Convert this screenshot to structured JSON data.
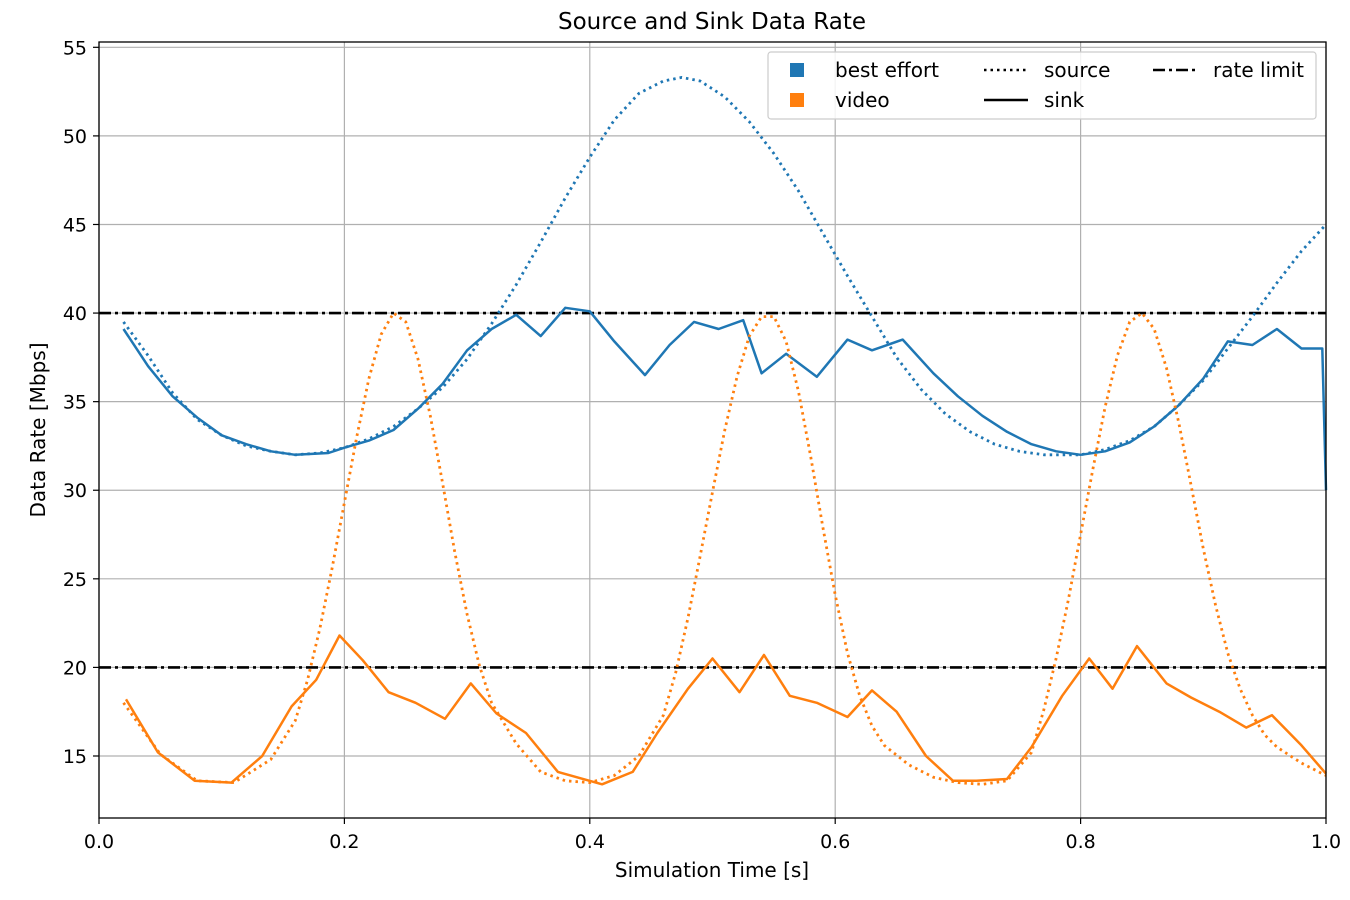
{
  "chart_data": {
    "type": "line",
    "title": "Source and Sink Data Rate",
    "xlabel": "Simulation Time [s]",
    "ylabel": "Data Rate [Mbps]",
    "xlim": [
      0.0,
      1.0
    ],
    "ylim": [
      11.5,
      55.3
    ],
    "xticks": [
      0.0,
      0.2,
      0.4,
      0.6,
      0.8,
      1.0
    ],
    "xtick_labels": [
      "0.0",
      "0.2",
      "0.4",
      "0.6",
      "0.8",
      "1.0"
    ],
    "yticks": [
      15,
      20,
      25,
      30,
      35,
      40,
      45,
      50,
      55
    ],
    "ytick_labels": [
      "15",
      "20",
      "25",
      "30",
      "35",
      "40",
      "45",
      "50",
      "55"
    ],
    "grid": true,
    "legend": {
      "placement": "top-right",
      "entries": [
        {
          "label": "best effort",
          "kind": "color",
          "color": "#1f77b4"
        },
        {
          "label": "video",
          "kind": "color",
          "color": "#ff7f0e"
        },
        {
          "label": "source",
          "kind": "line",
          "style": "dotted",
          "color": "#000000"
        },
        {
          "label": "sink",
          "kind": "line",
          "style": "solid",
          "color": "#000000"
        },
        {
          "label": "rate limit",
          "kind": "line",
          "style": "dashdot",
          "color": "#000000"
        }
      ]
    },
    "rate_limits": [
      40,
      20
    ],
    "series": [
      {
        "group": "best effort",
        "kind": "source",
        "style": "dotted",
        "color": "#1f77b4",
        "x": [
          0.02,
          0.04,
          0.06,
          0.08,
          0.1,
          0.12,
          0.14,
          0.16,
          0.18,
          0.2,
          0.22,
          0.24,
          0.26,
          0.28,
          0.3,
          0.32,
          0.34,
          0.36,
          0.38,
          0.4,
          0.42,
          0.44,
          0.46,
          0.475,
          0.49,
          0.51,
          0.53,
          0.55,
          0.57,
          0.59,
          0.61,
          0.63,
          0.65,
          0.67,
          0.69,
          0.71,
          0.73,
          0.75,
          0.77,
          0.79,
          0.8,
          0.82,
          0.84,
          0.86,
          0.88,
          0.9,
          0.92,
          0.94,
          0.96,
          0.98,
          1.0
        ],
        "y": [
          39.5,
          37.6,
          35.5,
          34.0,
          33.1,
          32.5,
          32.2,
          32.0,
          32.1,
          32.4,
          32.9,
          33.6,
          34.6,
          35.8,
          37.4,
          39.4,
          41.6,
          44.0,
          46.5,
          48.8,
          50.9,
          52.4,
          53.1,
          53.3,
          53.1,
          52.2,
          50.8,
          49.0,
          46.9,
          44.5,
          42.1,
          39.8,
          37.5,
          35.7,
          34.3,
          33.3,
          32.6,
          32.2,
          32.0,
          32.0,
          32.0,
          32.3,
          32.8,
          33.6,
          34.8,
          36.2,
          38.0,
          39.8,
          41.7,
          43.5,
          45.0
        ]
      },
      {
        "group": "best effort",
        "kind": "sink",
        "style": "solid",
        "color": "#1f77b4",
        "x": [
          0.02,
          0.04,
          0.06,
          0.08,
          0.1,
          0.12,
          0.14,
          0.16,
          0.187,
          0.2,
          0.22,
          0.24,
          0.26,
          0.28,
          0.3,
          0.32,
          0.34,
          0.36,
          0.38,
          0.4,
          0.42,
          0.445,
          0.465,
          0.485,
          0.505,
          0.525,
          0.54,
          0.56,
          0.585,
          0.61,
          0.63,
          0.655,
          0.68,
          0.7,
          0.72,
          0.74,
          0.76,
          0.78,
          0.8,
          0.82,
          0.84,
          0.86,
          0.88,
          0.9,
          0.92,
          0.94,
          0.96,
          0.98,
          0.997,
          1.0
        ],
        "y": [
          39.1,
          37.0,
          35.3,
          34.1,
          33.1,
          32.6,
          32.2,
          32.0,
          32.1,
          32.4,
          32.8,
          33.4,
          34.6,
          36.0,
          37.9,
          39.1,
          39.9,
          38.7,
          40.3,
          40.1,
          38.4,
          36.5,
          38.2,
          39.5,
          39.1,
          39.6,
          36.6,
          37.7,
          36.4,
          38.5,
          37.9,
          38.5,
          36.6,
          35.3,
          34.2,
          33.3,
          32.6,
          32.2,
          32.0,
          32.2,
          32.7,
          33.6,
          34.8,
          36.3,
          38.4,
          38.2,
          39.1,
          38.0,
          38.0,
          30.0
        ]
      },
      {
        "group": "video",
        "kind": "source",
        "style": "dotted",
        "color": "#ff7f0e",
        "x": [
          0.02,
          0.05,
          0.08,
          0.11,
          0.14,
          0.16,
          0.17,
          0.18,
          0.19,
          0.2,
          0.21,
          0.22,
          0.23,
          0.24,
          0.25,
          0.26,
          0.27,
          0.28,
          0.29,
          0.3,
          0.31,
          0.32,
          0.34,
          0.36,
          0.38,
          0.4,
          0.42,
          0.44,
          0.46,
          0.47,
          0.48,
          0.49,
          0.5,
          0.51,
          0.52,
          0.53,
          0.54,
          0.55,
          0.56,
          0.57,
          0.58,
          0.59,
          0.6,
          0.61,
          0.62,
          0.63,
          0.64,
          0.66,
          0.68,
          0.7,
          0.72,
          0.74,
          0.76,
          0.77,
          0.78,
          0.79,
          0.8,
          0.81,
          0.82,
          0.83,
          0.84,
          0.85,
          0.86,
          0.87,
          0.88,
          0.89,
          0.9,
          0.91,
          0.92,
          0.93,
          0.94,
          0.95,
          0.96,
          0.98,
          1.0
        ],
        "y": [
          18.0,
          15.1,
          13.6,
          13.5,
          14.8,
          17.0,
          19.3,
          22.2,
          25.6,
          29.3,
          33.0,
          36.3,
          38.8,
          40.0,
          39.5,
          37.4,
          34.2,
          30.4,
          26.5,
          23.0,
          20.1,
          18.0,
          15.7,
          14.1,
          13.6,
          13.5,
          13.9,
          15.0,
          17.3,
          19.7,
          22.8,
          26.3,
          29.9,
          33.4,
          36.4,
          38.7,
          39.8,
          39.8,
          38.4,
          35.6,
          31.9,
          27.9,
          24.1,
          20.8,
          18.4,
          16.7,
          15.6,
          14.5,
          13.8,
          13.5,
          13.4,
          13.6,
          15.2,
          17.6,
          20.5,
          23.8,
          27.5,
          31.2,
          34.7,
          37.6,
          39.5,
          40.0,
          39.1,
          36.9,
          33.8,
          30.3,
          26.7,
          23.5,
          20.8,
          18.8,
          17.3,
          16.2,
          15.5,
          14.6,
          13.9
        ]
      },
      {
        "group": "video",
        "kind": "sink",
        "style": "solid",
        "color": "#ff7f0e",
        "x": [
          0.022,
          0.048,
          0.078,
          0.108,
          0.133,
          0.157,
          0.177,
          0.196,
          0.215,
          0.236,
          0.258,
          0.282,
          0.303,
          0.324,
          0.348,
          0.374,
          0.41,
          0.435,
          0.455,
          0.48,
          0.5,
          0.522,
          0.542,
          0.563,
          0.585,
          0.61,
          0.63,
          0.65,
          0.674,
          0.696,
          0.715,
          0.74,
          0.76,
          0.785,
          0.807,
          0.826,
          0.846,
          0.87,
          0.89,
          0.913,
          0.935,
          0.956,
          0.98,
          1.0
        ],
        "y": [
          18.2,
          15.2,
          13.6,
          13.5,
          15.0,
          17.8,
          19.3,
          21.8,
          20.4,
          18.6,
          18.0,
          17.1,
          19.1,
          17.4,
          16.3,
          14.1,
          13.4,
          14.1,
          16.3,
          18.8,
          20.5,
          18.6,
          20.7,
          18.4,
          18.0,
          17.2,
          18.7,
          17.5,
          15.0,
          13.6,
          13.6,
          13.7,
          15.5,
          18.4,
          20.5,
          18.8,
          21.2,
          19.1,
          18.3,
          17.5,
          16.6,
          17.3,
          15.6,
          14.0
        ]
      }
    ]
  }
}
